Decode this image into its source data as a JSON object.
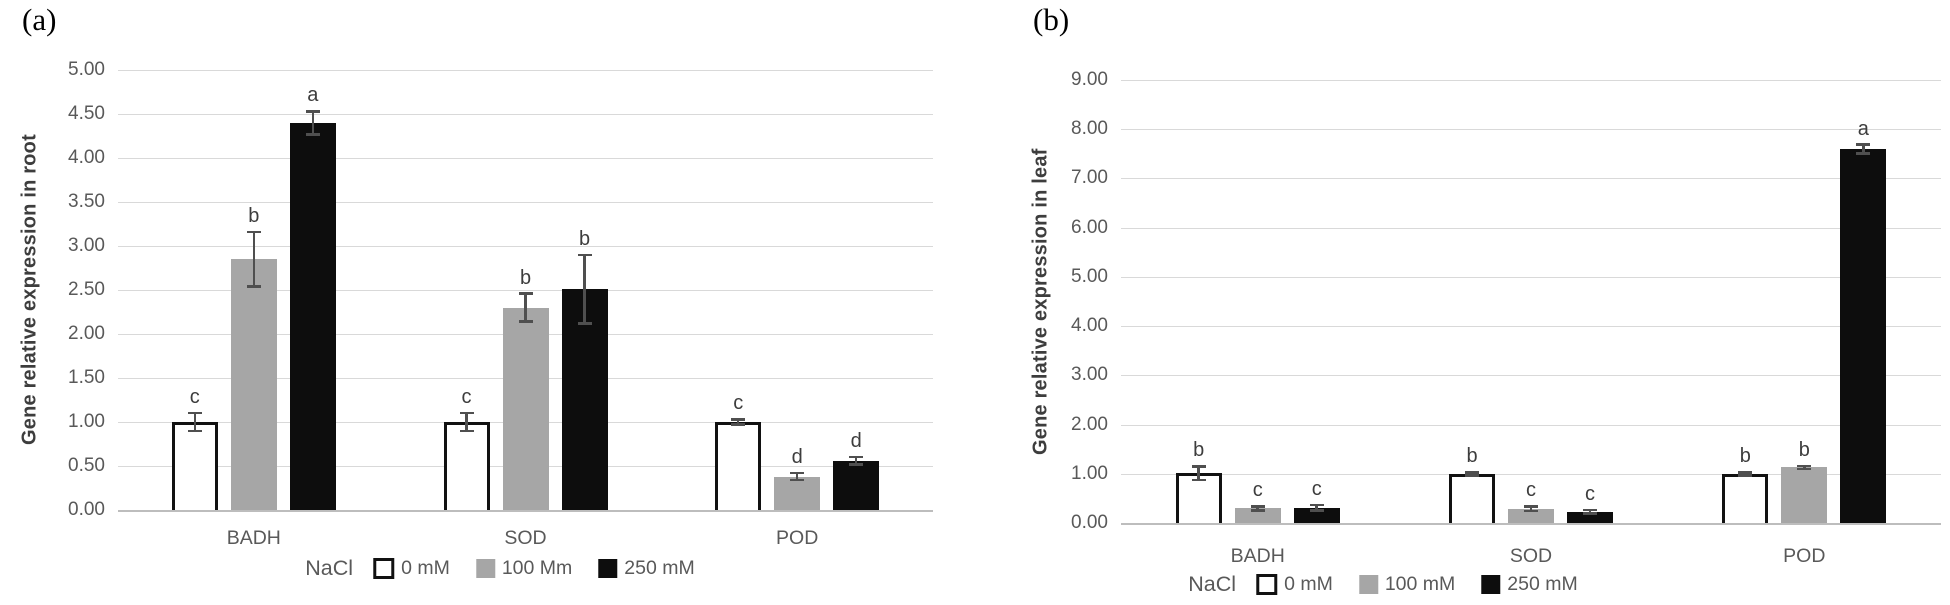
{
  "chart_data": [
    {
      "panel_label": "(a)",
      "type": "bar",
      "title": "",
      "xlabel": "",
      "ylabel": "Gene relative expression in root",
      "categories": [
        "BADH",
        "SOD",
        "POD"
      ],
      "ylim": [
        0,
        5
      ],
      "ytick_step": 0.5,
      "ytick_labels": [
        "5.00",
        "4.50",
        "4.00",
        "3.50",
        "3.00",
        "2.50",
        "2.00",
        "1.50",
        "1.00",
        "0.50",
        "0.00"
      ],
      "grid": true,
      "legend_position": "bottom",
      "legend_title": "NaCl",
      "series": [
        {
          "name": "0 mM",
          "fill": "#ffffff",
          "border": "#111111",
          "values": [
            1.0,
            1.0,
            1.0
          ],
          "errors": [
            0.1,
            0.1,
            0.03
          ],
          "letters": [
            "c",
            "c",
            "c"
          ]
        },
        {
          "name": "100 Mm",
          "fill": "#a6a6a6",
          "values": [
            2.85,
            2.3,
            0.38
          ],
          "errors": [
            0.31,
            0.16,
            0.04
          ],
          "letters": [
            "b",
            "b",
            "d"
          ]
        },
        {
          "name": "250 mM",
          "fill": "#0d0d0d",
          "values": [
            4.4,
            2.51,
            0.56
          ],
          "errors": [
            0.13,
            0.39,
            0.04
          ],
          "letters": [
            "a",
            "b",
            "d"
          ]
        }
      ]
    },
    {
      "panel_label": "(b)",
      "type": "bar",
      "title": "",
      "xlabel": "",
      "ylabel": "Gene relative expression in leaf",
      "categories": [
        "BADH",
        "SOD",
        "POD"
      ],
      "ylim": [
        0,
        9
      ],
      "ytick_step": 1.0,
      "ytick_labels": [
        "9.00",
        "8.00",
        "7.00",
        "6.00",
        "5.00",
        "4.00",
        "3.00",
        "2.00",
        "1.00",
        "0.00"
      ],
      "grid": true,
      "legend_position": "bottom",
      "legend_title": "NaCl",
      "series": [
        {
          "name": "0 mM",
          "fill": "#ffffff",
          "border": "#111111",
          "values": [
            1.01,
            1.0,
            1.0
          ],
          "errors": [
            0.14,
            0.03,
            0.03
          ],
          "letters": [
            "b",
            "b",
            "b"
          ]
        },
        {
          "name": "100 mM",
          "fill": "#a6a6a6",
          "values": [
            0.3,
            0.29,
            1.13
          ],
          "errors": [
            0.04,
            0.05,
            0.03
          ],
          "letters": [
            "c",
            "c",
            "b"
          ]
        },
        {
          "name": "250 mM",
          "fill": "#0d0d0d",
          "values": [
            0.31,
            0.23,
            7.6
          ],
          "errors": [
            0.06,
            0.04,
            0.09
          ],
          "letters": [
            "c",
            "c",
            "a"
          ]
        }
      ]
    }
  ],
  "colors": {
    "gridline": "#d9d9d9",
    "axis_text": "#595959",
    "letter_text": "#3d3d3d",
    "error_bar": "#4f4f4f",
    "bar_gray": "#a6a6a6",
    "bar_black": "#0d0d0d",
    "bar_white_border": "#111111"
  }
}
